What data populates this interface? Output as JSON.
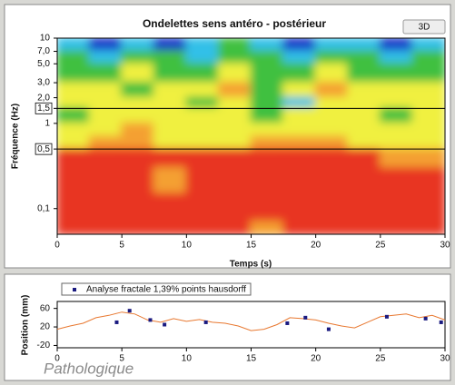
{
  "ui": {
    "button": "3D",
    "caption": "Pathologique"
  },
  "chart_data": [
    {
      "type": "heatmap",
      "title": "Ondelettes  sens antéro - postérieur",
      "x_label": "Temps (s)",
      "y_label": "Fréquence (Hz)",
      "log_y": true,
      "xlim": [
        0,
        30
      ],
      "xticks": [
        0,
        5,
        10,
        15,
        20,
        25,
        30
      ],
      "ylim": [
        0.05,
        10
      ],
      "yticks": [
        10,
        {
          "value": 7,
          "label": "7,0"
        },
        {
          "value": 5,
          "label": "5,0"
        },
        {
          "value": 3,
          "label": "3,0"
        },
        {
          "value": 2,
          "label": "2,0"
        },
        {
          "value": 1.5,
          "label": "1,5"
        },
        1,
        {
          "value": 0.5,
          "label": "0,5"
        },
        {
          "value": 0.1,
          "label": "0,1"
        }
      ],
      "reference_lines": [
        1.5,
        0.5
      ],
      "time_bins": [
        0,
        2.5,
        5,
        7.5,
        10,
        12.5,
        15,
        17.5,
        20,
        22.5,
        25,
        27.5,
        30
      ],
      "frequency_bins": [
        10,
        7,
        5,
        3,
        2,
        1.5,
        1,
        0.7,
        0.5,
        0.3,
        0.15,
        0.07,
        0.05
      ],
      "zlim": [
        0,
        5
      ],
      "colorscale": [
        "#1838c8",
        "#30c0e8",
        "#40c040",
        "#f0f040",
        "#f4a030",
        "#e83422"
      ],
      "z": [
        [
          1,
          0,
          1,
          0,
          1,
          2,
          1,
          0,
          1,
          1,
          0,
          1
        ],
        [
          2,
          1,
          2,
          2,
          1,
          2,
          2,
          1,
          2,
          2,
          1,
          2
        ],
        [
          2,
          2,
          3,
          2,
          2,
          3,
          2,
          2,
          3,
          2,
          2,
          2
        ],
        [
          3,
          3,
          2,
          3,
          3,
          4,
          2,
          3,
          4,
          3,
          3,
          3
        ],
        [
          3,
          3,
          3,
          3,
          2,
          3,
          2,
          1,
          3,
          3,
          3,
          3
        ],
        [
          2,
          3,
          3,
          3,
          3,
          3,
          2,
          3,
          3,
          3,
          2,
          3
        ],
        [
          3,
          3,
          4,
          3,
          3,
          3,
          3,
          3,
          3,
          3,
          3,
          3
        ],
        [
          3,
          4,
          4,
          3,
          3,
          3,
          4,
          4,
          4,
          3,
          3,
          3
        ],
        [
          5,
          5,
          5,
          5,
          5,
          5,
          5,
          5,
          5,
          5,
          4,
          4
        ],
        [
          5,
          5,
          5,
          4,
          5,
          5,
          5,
          5,
          5,
          5,
          5,
          5
        ],
        [
          5,
          5,
          5,
          5,
          5,
          5,
          5,
          5,
          5,
          5,
          5,
          5
        ],
        [
          5,
          5,
          5,
          5,
          5,
          5,
          4,
          5,
          5,
          5,
          5,
          5
        ]
      ]
    },
    {
      "type": "line",
      "y_label": "Position (mm)",
      "xlim": [
        0,
        30
      ],
      "xticks": [
        0,
        5,
        10,
        15,
        20,
        25,
        30
      ],
      "ylim": [
        -25,
        75
      ],
      "yticks": [
        -20,
        20,
        60
      ],
      "color": "#e87830",
      "x": [
        0,
        1,
        2,
        3,
        4,
        5,
        6,
        7,
        8,
        9,
        10,
        11,
        12,
        13,
        14,
        15,
        16,
        17,
        18,
        19,
        20,
        21,
        22,
        23,
        24,
        25,
        26,
        27,
        28,
        29,
        30
      ],
      "values": [
        15,
        22,
        28,
        40,
        45,
        52,
        48,
        35,
        30,
        38,
        32,
        36,
        30,
        28,
        22,
        12,
        15,
        25,
        40,
        38,
        35,
        28,
        22,
        18,
        30,
        42,
        45,
        48,
        40,
        45,
        35
      ],
      "markers": {
        "name": "Analyse fractale  1,39% points hausdorff",
        "color": "#1a1a80",
        "x": [
          4.6,
          5.6,
          7.2,
          8.3,
          11.5,
          17.8,
          19.2,
          21,
          25.5,
          28.5,
          29.7
        ],
        "y": [
          30,
          55,
          35,
          25,
          30,
          28,
          40,
          15,
          42,
          38,
          30
        ]
      }
    }
  ]
}
